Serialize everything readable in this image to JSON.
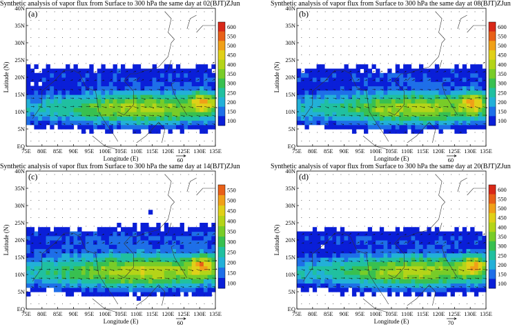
{
  "figure": {
    "panels": [
      {
        "id": "a",
        "title": "Synthetic analysis of vapor flux from Surface to 300 hPa the same day at 02(BJT)ZJun",
        "label": "(a)",
        "colorbar": [
          "600",
          "550",
          "500",
          "450",
          "400",
          "350",
          "300",
          "250",
          "200",
          "150",
          "100"
        ],
        "ref_vector": "60"
      },
      {
        "id": "b",
        "title": "Synthetic analysis of vapor flux from Surface to 300 hPa the same day at 08(BJT)ZJun",
        "label": "(b)",
        "colorbar": [
          "600",
          "550",
          "500",
          "450",
          "400",
          "350",
          "300",
          "250",
          "200",
          "150",
          "100"
        ],
        "ref_vector": "60"
      },
      {
        "id": "c",
        "title": "Synthetic analysis of vapor flux from Surface to 300 hPa the same day at 14(BJT)ZJun",
        "label": "(c)",
        "colorbar": [
          "550",
          "500",
          "450",
          "400",
          "350",
          "300",
          "250",
          "200",
          "150",
          "100"
        ],
        "ref_vector": "60"
      },
      {
        "id": "d",
        "title": "Synthetic analysis of vapor flux from Surface to 300 hPa the same day at 20(BJT)ZJun",
        "label": "(d)",
        "colorbar": [
          "600",
          "550",
          "500",
          "450",
          "400",
          "350",
          "300",
          "250",
          "200",
          "150",
          "100"
        ],
        "ref_vector": "70"
      }
    ],
    "y_ticks": [
      "40N",
      "35N",
      "30N",
      "25N",
      "20N",
      "15N",
      "10N",
      "5N",
      "EQ"
    ],
    "x_ticks": [
      "75E",
      "80E",
      "85E",
      "90E",
      "95E",
      "100E",
      "105E",
      "110E",
      "115E",
      "120E",
      "125E",
      "130E",
      "135E"
    ],
    "ylabel": "Latitude (N)",
    "xlabel": "Longitude (E)",
    "colors": {
      "scale": [
        "#0a1fd8",
        "#1e6fe8",
        "#22b0d8",
        "#20c0a0",
        "#38c050",
        "#78cc28",
        "#b4d418",
        "#e0d018",
        "#f0a018",
        "#e86018",
        "#d82818"
      ],
      "land_outline": "#333333",
      "background": "#ffffff"
    }
  }
}
